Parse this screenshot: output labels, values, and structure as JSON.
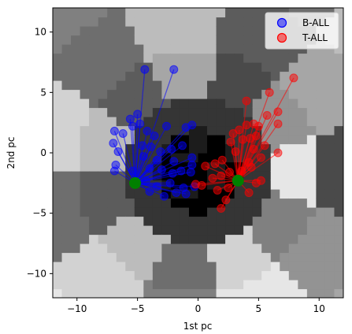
{
  "chart_data": {
    "type": "scatter",
    "xlabel": "1st pc",
    "ylabel": "2nd pc",
    "xlim": [
      -12,
      12
    ],
    "ylim": [
      -12,
      12
    ],
    "xticks": [
      -10,
      -5,
      0,
      5,
      10
    ],
    "yticks": [
      -10,
      -5,
      0,
      5,
      10
    ],
    "grid": false,
    "legend_position": "top-right",
    "background": "grayscale decision regions (nearest-centroid style patches)",
    "series": [
      {
        "name": "B-ALL",
        "color": "#0000ff",
        "centroid": [
          -5.2,
          -2.5
        ],
        "points": [
          [
            -4.4,
            6.9
          ],
          [
            -2.0,
            6.9
          ],
          [
            -5.0,
            3.2
          ],
          [
            -5.6,
            2.8
          ],
          [
            -5.4,
            2.2
          ],
          [
            -4.8,
            2.4
          ],
          [
            -6.9,
            1.8
          ],
          [
            -6.2,
            1.6
          ],
          [
            -4.2,
            1.8
          ],
          [
            -3.6,
            1.4
          ],
          [
            -2.6,
            2.2
          ],
          [
            -0.5,
            2.3
          ],
          [
            -1.0,
            2.1
          ],
          [
            -7.0,
            0.8
          ],
          [
            -6.6,
            0.1
          ],
          [
            -4.6,
            0.6
          ],
          [
            -3.9,
            0.5
          ],
          [
            -3.1,
            0.1
          ],
          [
            -2.2,
            0.3
          ],
          [
            -1.3,
            0.6
          ],
          [
            -4.5,
            -0.3
          ],
          [
            -3.4,
            -0.6
          ],
          [
            -2.0,
            -0.7
          ],
          [
            -0.5,
            -0.4
          ],
          [
            -6.9,
            -1.5
          ],
          [
            -6.8,
            -1.0
          ],
          [
            -5.4,
            -1.5
          ],
          [
            -4.0,
            -1.3
          ],
          [
            -3.0,
            -1.4
          ],
          [
            -2.1,
            -1.7
          ],
          [
            -1.4,
            -1.5
          ],
          [
            -0.6,
            -1.6
          ],
          [
            -4.3,
            -2.3
          ],
          [
            -3.4,
            -2.8
          ],
          [
            -2.3,
            -2.5
          ],
          [
            -1.2,
            -2.9
          ],
          [
            -0.3,
            -2.8
          ],
          [
            -4.0,
            -3.2
          ],
          [
            -2.8,
            -3.6
          ],
          [
            -1.8,
            -3.3
          ],
          [
            -1.0,
            -3.4
          ],
          [
            -0.5,
            -1.0
          ]
        ]
      },
      {
        "name": "T-ALL",
        "color": "#ff0000",
        "centroid": [
          3.3,
          -2.3
        ],
        "points": [
          [
            7.9,
            6.2
          ],
          [
            5.9,
            5.0
          ],
          [
            4.0,
            4.3
          ],
          [
            6.6,
            3.4
          ],
          [
            5.7,
            3.1
          ],
          [
            6.6,
            2.4
          ],
          [
            5.0,
            2.2
          ],
          [
            4.6,
            2.4
          ],
          [
            4.0,
            2.3
          ],
          [
            3.4,
            1.9
          ],
          [
            2.9,
            1.6
          ],
          [
            4.8,
            1.4
          ],
          [
            4.3,
            1.2
          ],
          [
            3.7,
            1.1
          ],
          [
            2.7,
            0.9
          ],
          [
            5.5,
            0.6
          ],
          [
            4.6,
            0.3
          ],
          [
            3.1,
            0.1
          ],
          [
            6.6,
            0.0
          ],
          [
            5.2,
            -0.4
          ],
          [
            4.2,
            -0.8
          ],
          [
            2.0,
            -0.6
          ],
          [
            1.4,
            -0.9
          ],
          [
            0.6,
            -1.1
          ],
          [
            4.4,
            -1.2
          ],
          [
            3.6,
            -1.5
          ],
          [
            2.6,
            -1.6
          ],
          [
            1.9,
            -1.9
          ],
          [
            1.2,
            -2.1
          ],
          [
            4.8,
            -2.5
          ],
          [
            2.5,
            -2.9
          ],
          [
            1.6,
            -3.1
          ],
          [
            4.2,
            -3.3
          ],
          [
            2.3,
            -3.9
          ],
          [
            1.9,
            -4.6
          ],
          [
            0.3,
            -2.7
          ],
          [
            -0.2,
            -2.6
          ],
          [
            5.2,
            -2.3
          ]
        ]
      }
    ],
    "centroid_color": "#008000"
  }
}
